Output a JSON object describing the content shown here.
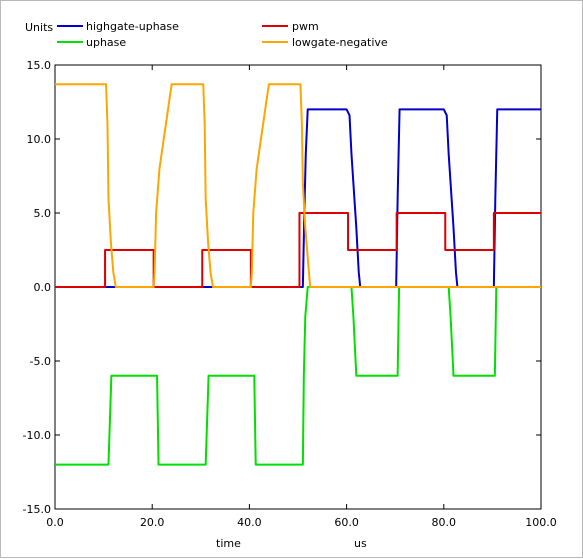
{
  "chart_data": {
    "type": "line",
    "ylabel": "Units",
    "xlabel": "time",
    "xunit": "us",
    "xlim": [
      0,
      100
    ],
    "ylim": [
      -15,
      15
    ],
    "x_ticks": [
      0,
      20,
      40,
      60,
      80,
      100
    ],
    "x_tick_labels": [
      "0.0",
      "20.0",
      "40.0",
      "60.0",
      "80.0",
      "100.0"
    ],
    "y_ticks": [
      -15,
      -10,
      -5,
      0,
      5,
      10,
      15
    ],
    "y_tick_labels": [
      "-15.0",
      "-10.0",
      "-5.0",
      "0.0",
      "5.0",
      "10.0",
      "15.0"
    ],
    "grid": false,
    "legend_position": "top",
    "series": [
      {
        "name": "highgate-uphase",
        "color": "#0000cc",
        "points": [
          [
            0,
            0
          ],
          [
            51,
            0
          ],
          [
            51.3,
            5
          ],
          [
            51.6,
            9
          ],
          [
            52,
            12
          ],
          [
            60,
            12
          ],
          [
            60.6,
            11.6
          ],
          [
            61,
            9
          ],
          [
            62,
            4
          ],
          [
            62.5,
            1
          ],
          [
            62.8,
            0
          ],
          [
            70.2,
            0
          ],
          [
            70.5,
            6
          ],
          [
            70.9,
            12
          ],
          [
            80,
            12
          ],
          [
            80.6,
            11.6
          ],
          [
            81,
            9
          ],
          [
            82,
            4
          ],
          [
            82.5,
            1
          ],
          [
            82.8,
            0
          ],
          [
            90.3,
            0
          ],
          [
            90.6,
            6
          ],
          [
            91,
            12
          ],
          [
            100,
            12
          ]
        ]
      },
      {
        "name": "pwm",
        "color": "#dd0000",
        "points": [
          [
            0,
            0
          ],
          [
            10.3,
            0
          ],
          [
            10.3,
            2.5
          ],
          [
            20.3,
            2.5
          ],
          [
            20.3,
            0
          ],
          [
            30.3,
            0
          ],
          [
            30.3,
            2.5
          ],
          [
            40.3,
            2.5
          ],
          [
            40.3,
            0
          ],
          [
            50.3,
            0
          ],
          [
            50.3,
            5
          ],
          [
            60.3,
            5
          ],
          [
            60.3,
            2.5
          ],
          [
            70.3,
            2.5
          ],
          [
            70.3,
            5
          ],
          [
            80.3,
            5
          ],
          [
            80.3,
            2.5
          ],
          [
            90.3,
            2.5
          ],
          [
            90.3,
            5
          ],
          [
            100,
            5
          ]
        ]
      },
      {
        "name": "uphase",
        "color": "#00e000",
        "points": [
          [
            0,
            -12
          ],
          [
            11,
            -12
          ],
          [
            11.3,
            -9
          ],
          [
            11.6,
            -6
          ],
          [
            21,
            -6
          ],
          [
            21.3,
            -12
          ],
          [
            31,
            -12
          ],
          [
            31.3,
            -9
          ],
          [
            31.6,
            -6
          ],
          [
            41,
            -6
          ],
          [
            41.3,
            -12
          ],
          [
            51,
            -12
          ],
          [
            51.2,
            -6
          ],
          [
            51.5,
            -2
          ],
          [
            52,
            0
          ],
          [
            61,
            0
          ],
          [
            61.4,
            -2
          ],
          [
            61.7,
            -4
          ],
          [
            62,
            -6
          ],
          [
            70.5,
            -6
          ],
          [
            70.8,
            0
          ],
          [
            81,
            0
          ],
          [
            81.4,
            -2
          ],
          [
            81.7,
            -4
          ],
          [
            82,
            -6
          ],
          [
            90.5,
            -6
          ],
          [
            90.8,
            0
          ],
          [
            100,
            0
          ]
        ]
      },
      {
        "name": "lowgate-negative",
        "color": "#ffa500",
        "points": [
          [
            0,
            13.7
          ],
          [
            10.5,
            13.7
          ],
          [
            10.8,
            11
          ],
          [
            11,
            6
          ],
          [
            11.5,
            3
          ],
          [
            12,
            1
          ],
          [
            12.5,
            0
          ],
          [
            20.3,
            0
          ],
          [
            20.5,
            1
          ],
          [
            20.8,
            5
          ],
          [
            21.5,
            8
          ],
          [
            24,
            13.7
          ],
          [
            30.5,
            13.7
          ],
          [
            30.8,
            11
          ],
          [
            31,
            6
          ],
          [
            31.5,
            3
          ],
          [
            32,
            1
          ],
          [
            32.5,
            0
          ],
          [
            40.3,
            0
          ],
          [
            40.5,
            1
          ],
          [
            40.8,
            5
          ],
          [
            41.5,
            8
          ],
          [
            44,
            13.7
          ],
          [
            50.5,
            13.7
          ],
          [
            50.8,
            11
          ],
          [
            51,
            7
          ],
          [
            51.5,
            4
          ],
          [
            52,
            2
          ],
          [
            52.5,
            0
          ],
          [
            60.5,
            0
          ],
          [
            100,
            0
          ]
        ]
      }
    ]
  }
}
